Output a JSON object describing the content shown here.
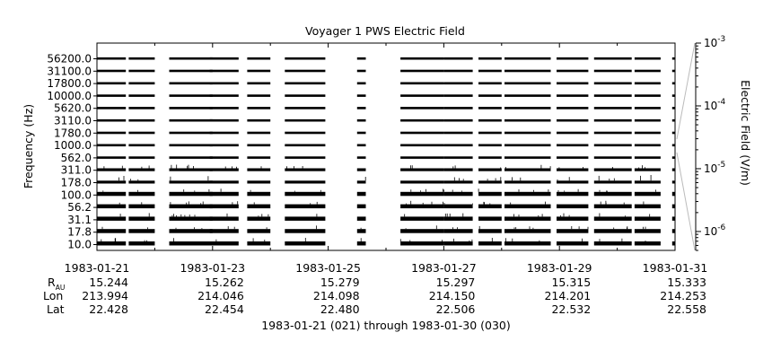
{
  "chart_data": {
    "type": "heatmap",
    "title": "Voyager 1 PWS Electric Field",
    "ylabel": "Frequency (Hz)",
    "colorbar_label": "Electric Field (V/m)",
    "xlabel": "1983-01-21 (021) through 1983-01-30 (030)",
    "channels_hz": [
      "56200.0",
      "31100.0",
      "17800.0",
      "10000.0",
      "5620.0",
      "3110.0",
      "1780.0",
      "1000.0",
      "562.0",
      "311.0",
      "178.0",
      "100.0",
      "56.2",
      "31.1",
      "17.8",
      "10.0"
    ],
    "colorbar_ticks": [
      {
        "base": "10",
        "exp": "-3",
        "value": 0.001
      },
      {
        "base": "10",
        "exp": "-4",
        "value": 0.0001
      },
      {
        "base": "10",
        "exp": "-5",
        "value": 1e-05
      },
      {
        "base": "10",
        "exp": "-6",
        "value": 1e-06
      }
    ],
    "colorbar_range": [
      5e-07,
      0.001
    ],
    "colorbar_scale": "log",
    "x_range_days": [
      0,
      10
    ],
    "data_coverage_days": [
      [
        0.0,
        0.5
      ],
      [
        0.55,
        1.0
      ],
      [
        1.25,
        2.0
      ],
      [
        1.95,
        2.45
      ],
      [
        2.6,
        3.0
      ],
      [
        3.25,
        3.95
      ],
      [
        4.5,
        4.65
      ],
      [
        5.25,
        6.0
      ],
      [
        6.0,
        6.5
      ],
      [
        6.6,
        7.0
      ],
      [
        7.05,
        7.85
      ],
      [
        7.95,
        8.5
      ],
      [
        8.6,
        9.25
      ],
      [
        9.3,
        9.75
      ],
      [
        9.95,
        10.0
      ]
    ],
    "x_ticks": [
      {
        "day": 0,
        "date": "1983-01-21",
        "r": "15.244",
        "lon": "213.994",
        "lat": "22.428"
      },
      {
        "day": 2,
        "date": "1983-01-23",
        "r": "15.262",
        "lon": "214.046",
        "lat": "22.454"
      },
      {
        "day": 4,
        "date": "1983-01-25",
        "r": "15.279",
        "lon": "214.098",
        "lat": "22.480"
      },
      {
        "day": 6,
        "date": "1983-01-27",
        "r": "15.297",
        "lon": "214.150",
        "lat": "22.506"
      },
      {
        "day": 8,
        "date": "1983-01-29",
        "r": "15.315",
        "lon": "214.201",
        "lat": "22.532"
      },
      {
        "day": 10,
        "date": "1983-01-31",
        "r": "15.333",
        "lon": "214.253",
        "lat": "22.558"
      }
    ],
    "row_labels": {
      "r": "R",
      "r_sub": "AU",
      "lon": "Lon",
      "lat": "Lat"
    }
  }
}
